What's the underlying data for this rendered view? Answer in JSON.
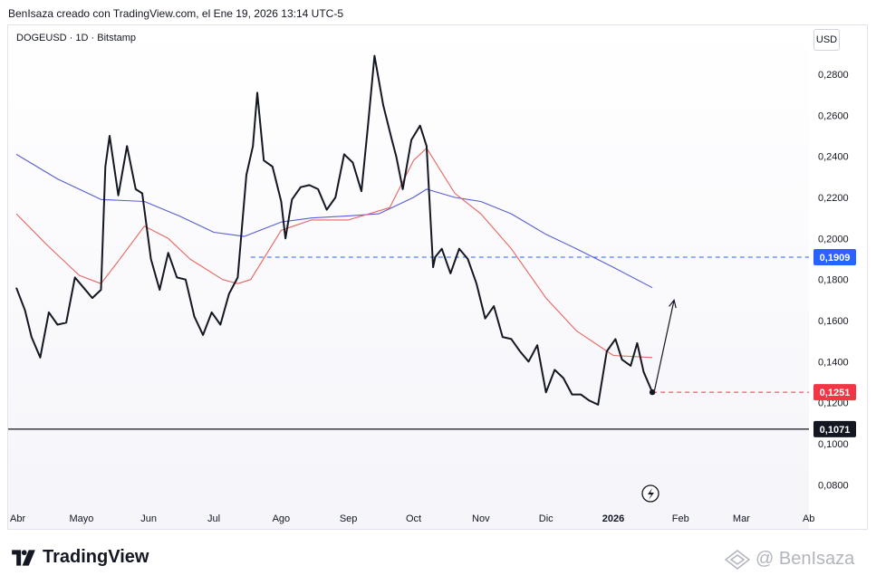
{
  "caption": "BenIsaza creado con TradingView.com, el Ene 19, 2026 13:14 UTC-5",
  "symbol": "DOGEUSD · 1D · Bitstamp",
  "currency_button": "USD",
  "brand": "TradingView",
  "watermark": "@ BenIsaza",
  "colors": {
    "price": "#131722",
    "ma_fast": "#e8645f",
    "ma_slow": "#5a5bd6",
    "support_label": "#131722",
    "current_label": "#f23645",
    "resistance_label": "#2962ff"
  },
  "chart_data": {
    "type": "line",
    "y_axis_ticks": [
      "0,2800",
      "0,2600",
      "0,2400",
      "0,2200",
      "0,2000",
      "0,1800",
      "0,1600",
      "0,1400",
      "0,1200",
      "0,1000",
      "0,0800"
    ],
    "x_axis_ticks": [
      "Abr",
      "Mayo",
      "Jun",
      "Jul",
      "Ago",
      "Sep",
      "Oct",
      "Nov",
      "Dic",
      "2026",
      "Feb",
      "Mar",
      "Ab"
    ],
    "ylim": [
      0.075,
      0.29
    ],
    "price_labels": {
      "resistance": "0,1909",
      "current": "0,1251",
      "support": "0,1071"
    },
    "series": [
      {
        "name": "",
        "role": "price",
        "x": [
          "2025-04-01",
          "2025-04-05",
          "2025-04-08",
          "2025-04-12",
          "2025-04-16",
          "2025-04-20",
          "2025-04-24",
          "2025-04-28",
          "2025-05-02",
          "2025-05-06",
          "2025-05-10",
          "2025-05-12",
          "2025-05-14",
          "2025-05-18",
          "2025-05-22",
          "2025-05-26",
          "2025-05-29",
          "2025-06-02",
          "2025-06-06",
          "2025-06-10",
          "2025-06-14",
          "2025-06-18",
          "2025-06-22",
          "2025-06-26",
          "2025-06-30",
          "2025-07-04",
          "2025-07-08",
          "2025-07-12",
          "2025-07-16",
          "2025-07-19",
          "2025-07-21",
          "2025-07-24",
          "2025-07-28",
          "2025-08-01",
          "2025-08-03",
          "2025-08-06",
          "2025-08-10",
          "2025-08-14",
          "2025-08-18",
          "2025-08-22",
          "2025-08-26",
          "2025-08-30",
          "2025-09-03",
          "2025-09-07",
          "2025-09-10",
          "2025-09-13",
          "2025-09-17",
          "2025-09-21",
          "2025-09-23",
          "2025-09-26",
          "2025-09-30",
          "2025-10-04",
          "2025-10-07",
          "2025-10-10",
          "2025-10-11",
          "2025-10-14",
          "2025-10-18",
          "2025-10-22",
          "2025-10-26",
          "2025-10-30",
          "2025-11-03",
          "2025-11-07",
          "2025-11-11",
          "2025-11-15",
          "2025-11-19",
          "2025-11-23",
          "2025-11-27",
          "2025-12-01",
          "2025-12-05",
          "2025-12-09",
          "2025-12-13",
          "2025-12-17",
          "2025-12-21",
          "2025-12-25",
          "2025-12-29",
          "2026-01-02",
          "2026-01-05",
          "2026-01-09",
          "2026-01-12",
          "2026-01-15",
          "2026-01-19"
        ],
        "values": [
          0.176,
          0.165,
          0.152,
          0.142,
          0.164,
          0.158,
          0.159,
          0.181,
          0.176,
          0.171,
          0.175,
          0.235,
          0.25,
          0.221,
          0.245,
          0.224,
          0.222,
          0.19,
          0.175,
          0.193,
          0.181,
          0.18,
          0.162,
          0.153,
          0.164,
          0.158,
          0.173,
          0.181,
          0.231,
          0.245,
          0.271,
          0.238,
          0.235,
          0.218,
          0.2,
          0.219,
          0.225,
          0.226,
          0.224,
          0.214,
          0.22,
          0.241,
          0.237,
          0.223,
          0.255,
          0.289,
          0.265,
          0.248,
          0.24,
          0.224,
          0.248,
          0.255,
          0.245,
          0.186,
          0.191,
          0.195,
          0.183,
          0.195,
          0.19,
          0.178,
          0.161,
          0.167,
          0.152,
          0.151,
          0.145,
          0.14,
          0.148,
          0.125,
          0.136,
          0.132,
          0.124,
          0.124,
          0.121,
          0.119,
          0.145,
          0.151,
          0.141,
          0.138,
          0.149,
          0.135,
          0.1251
        ]
      },
      {
        "name": "",
        "role": "ma_fast",
        "x": [
          "2025-04-01",
          "2025-04-15",
          "2025-04-30",
          "2025-05-10",
          "2025-05-18",
          "2025-05-30",
          "2025-06-10",
          "2025-06-20",
          "2025-07-05",
          "2025-07-12",
          "2025-07-18",
          "2025-08-01",
          "2025-08-15",
          "2025-09-01",
          "2025-09-20",
          "2025-10-01",
          "2025-10-07",
          "2025-10-20",
          "2025-11-01",
          "2025-11-15",
          "2025-12-01",
          "2025-12-15",
          "2026-01-01",
          "2026-01-19"
        ],
        "values": [
          0.212,
          0.197,
          0.182,
          0.178,
          0.189,
          0.206,
          0.2,
          0.19,
          0.18,
          0.178,
          0.18,
          0.204,
          0.209,
          0.209,
          0.215,
          0.238,
          0.244,
          0.222,
          0.212,
          0.195,
          0.171,
          0.155,
          0.143,
          0.142
        ]
      },
      {
        "name": "",
        "role": "ma_slow",
        "x": [
          "2025-04-01",
          "2025-04-20",
          "2025-05-10",
          "2025-05-30",
          "2025-06-15",
          "2025-07-01",
          "2025-07-15",
          "2025-08-01",
          "2025-08-15",
          "2025-09-01",
          "2025-09-15",
          "2025-10-01",
          "2025-10-07",
          "2025-10-20",
          "2025-11-01",
          "2025-11-15",
          "2025-12-01",
          "2025-12-15",
          "2026-01-01",
          "2026-01-19"
        ],
        "values": [
          0.241,
          0.229,
          0.219,
          0.218,
          0.211,
          0.203,
          0.201,
          0.208,
          0.21,
          0.211,
          0.212,
          0.22,
          0.224,
          0.22,
          0.218,
          0.212,
          0.202,
          0.195,
          0.186,
          0.176
        ]
      }
    ],
    "reference_lines": [
      {
        "label": "0,1909",
        "value": 0.1909,
        "style": "dashed",
        "color": "#2962ff"
      },
      {
        "label": "0,1251",
        "value": 0.1251,
        "style": "dashed",
        "color": "#f23645"
      },
      {
        "label": "0,1071",
        "value": 0.1071,
        "style": "solid",
        "color": "#131722"
      }
    ],
    "annotations": [
      {
        "type": "arrow",
        "from": [
          "2026-01-20",
          0.126
        ],
        "to": [
          "2026-01-29",
          0.17
        ]
      }
    ]
  }
}
